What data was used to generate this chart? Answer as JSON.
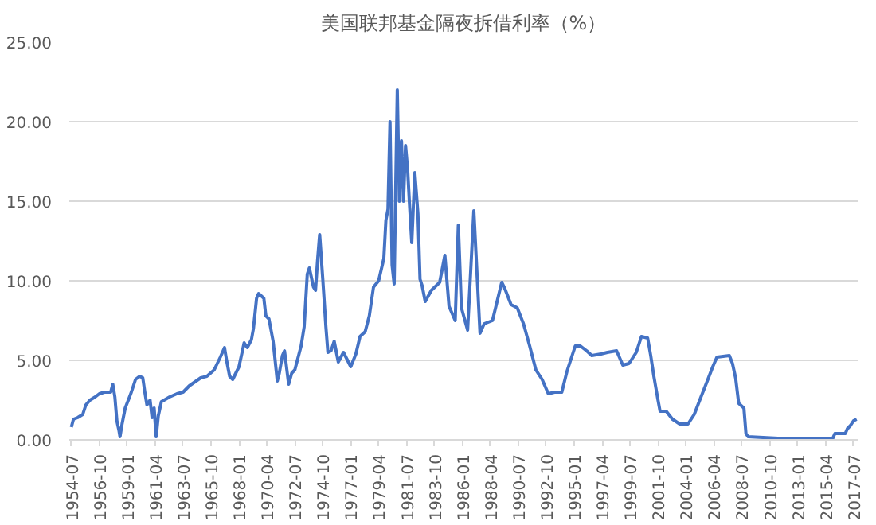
{
  "chart_data": {
    "type": "line",
    "title": "美国联邦基金隔夜拆借利率（%）",
    "x": [
      "1954-07",
      "1954-09",
      "1955-01",
      "1955-06",
      "1955-09",
      "1956-01",
      "1956-06",
      "1956-10",
      "1957-03",
      "1957-09",
      "1957-11",
      "1958-01",
      "1958-03",
      "1958-05",
      "1958-06",
      "1958-08",
      "1958-11",
      "1959-02",
      "1959-05",
      "1959-09",
      "1960-01",
      "1960-04",
      "1960-06",
      "1960-08",
      "1960-11",
      "1961-01",
      "1961-03",
      "1961-05",
      "1961-07",
      "1961-10",
      "1962-06",
      "1963-01",
      "1963-07",
      "1964-01",
      "1964-12",
      "1965-06",
      "1966-01",
      "1966-07",
      "1966-11",
      "1967-01",
      "1967-04",
      "1967-07",
      "1968-01",
      "1968-06",
      "1968-09",
      "1969-01",
      "1969-03",
      "1969-06",
      "1969-08",
      "1970-01",
      "1970-03",
      "1970-06",
      "1970-10",
      "1971-02",
      "1971-04",
      "1971-07",
      "1971-09",
      "1972-01",
      "1972-04",
      "1972-07",
      "1973-01",
      "1973-04",
      "1973-07",
      "1973-09",
      "1974-01",
      "1974-03",
      "1974-05",
      "1974-07",
      "1974-10",
      "1975-01",
      "1975-03",
      "1975-06",
      "1975-09",
      "1976-01",
      "1976-06",
      "1977-01",
      "1977-06",
      "1977-10",
      "1978-03",
      "1978-07",
      "1978-11",
      "1979-04",
      "1979-09",
      "1979-11",
      "1980-01",
      "1980-03",
      "1980-05",
      "1980-07",
      "1980-10",
      "1980-12",
      "1981-02",
      "1981-04",
      "1981-06",
      "1981-08",
      "1981-10",
      "1981-12",
      "1982-03",
      "1982-06",
      "1982-08",
      "1982-10",
      "1983-01",
      "1983-07",
      "1984-03",
      "1984-08",
      "1984-12",
      "1985-06",
      "1985-09",
      "1985-12",
      "1986-06",
      "1986-12",
      "1987-06",
      "1987-10",
      "1988-06",
      "1989-03",
      "1989-06",
      "1989-12",
      "1990-06",
      "1990-12",
      "1991-06",
      "1991-12",
      "1992-06",
      "1992-12",
      "1993-06",
      "1994-01",
      "1994-06",
      "1995-02",
      "1995-07",
      "1996-01",
      "1996-06",
      "1997-03",
      "1997-09",
      "1998-06",
      "1998-12",
      "1999-06",
      "2000-01",
      "2000-06",
      "2000-12",
      "2001-03",
      "2001-06",
      "2001-10",
      "2001-12",
      "2002-06",
      "2002-12",
      "2003-07",
      "2004-03",
      "2004-09",
      "2005-03",
      "2005-09",
      "2006-03",
      "2006-07",
      "2007-07",
      "2007-10",
      "2008-01",
      "2008-04",
      "2008-09",
      "2008-11",
      "2009-01",
      "2011-06",
      "2014-01",
      "2015-11",
      "2016-01",
      "2016-11",
      "2017-01",
      "2017-04",
      "2017-07",
      "2017-10"
    ],
    "series": [
      {
        "color": "#4472c4",
        "values": [
          0.8,
          1.3,
          1.4,
          1.6,
          2.2,
          2.5,
          2.7,
          2.9,
          3.0,
          3.0,
          3.5,
          2.7,
          1.2,
          0.6,
          0.2,
          1.0,
          2.0,
          2.5,
          3.0,
          3.8,
          4.0,
          3.9,
          3.0,
          2.2,
          2.5,
          1.4,
          2.0,
          0.2,
          1.5,
          2.4,
          2.7,
          2.9,
          3.0,
          3.4,
          3.9,
          4.0,
          4.4,
          5.2,
          5.8,
          5.0,
          4.0,
          3.8,
          4.6,
          6.1,
          5.8,
          6.3,
          7.0,
          8.9,
          9.2,
          8.9,
          7.8,
          7.6,
          6.2,
          3.7,
          4.2,
          5.3,
          5.6,
          3.5,
          4.2,
          4.4,
          5.9,
          7.1,
          10.4,
          10.8,
          9.6,
          9.4,
          11.3,
          12.9,
          10.1,
          7.1,
          5.5,
          5.6,
          6.2,
          4.9,
          5.5,
          4.6,
          5.4,
          6.5,
          6.8,
          7.8,
          9.6,
          10.0,
          11.4,
          13.8,
          14.5,
          20.0,
          11.0,
          9.8,
          22.0,
          15.0,
          18.8,
          15.0,
          18.5,
          17.0,
          14.6,
          12.4,
          16.8,
          14.2,
          10.1,
          9.7,
          8.7,
          9.4,
          9.9,
          11.6,
          8.4,
          7.5,
          13.5,
          8.3,
          6.9,
          14.4,
          6.7,
          7.3,
          7.5,
          9.9,
          9.5,
          8.5,
          8.3,
          7.3,
          5.9,
          4.4,
          3.8,
          2.9,
          3.0,
          3.0,
          4.3,
          5.9,
          5.9,
          5.6,
          5.3,
          5.4,
          5.5,
          5.6,
          4.7,
          4.8,
          5.5,
          6.5,
          6.4,
          5.3,
          4.0,
          2.5,
          1.8,
          1.8,
          1.3,
          1.0,
          1.0,
          1.6,
          2.6,
          3.6,
          4.6,
          5.2,
          5.3,
          4.8,
          3.9,
          2.3,
          2.0,
          0.4,
          0.2,
          0.1,
          0.1,
          0.1,
          0.4,
          0.4,
          0.7,
          0.9,
          1.2,
          1.3
        ]
      }
    ],
    "xlim": [
      "1954-05",
      "2017-11"
    ],
    "xticks": [
      "1954-07",
      "1956-10",
      "1959-01",
      "1961-04",
      "1963-07",
      "1965-10",
      "1968-01",
      "1970-04",
      "1972-07",
      "1974-10",
      "1977-01",
      "1979-04",
      "1981-07",
      "1983-10",
      "1986-01",
      "1988-04",
      "1990-07",
      "1992-10",
      "1995-01",
      "1997-04",
      "1999-07",
      "2001-10",
      "2004-01",
      "2006-04",
      "2008-07",
      "2010-10",
      "2013-01",
      "2015-04",
      "2017-07"
    ],
    "ylim": [
      0,
      25
    ],
    "yticks": [
      {
        "value": 0,
        "label": "0.00"
      },
      {
        "value": 5,
        "label": "5.00"
      },
      {
        "value": 10,
        "label": "10.00"
      },
      {
        "value": 15,
        "label": "15.00"
      },
      {
        "value": 20,
        "label": "20.00"
      },
      {
        "value": 25,
        "label": "25.00"
      }
    ],
    "grid": "y",
    "marker": "none",
    "line_style": "solid"
  }
}
